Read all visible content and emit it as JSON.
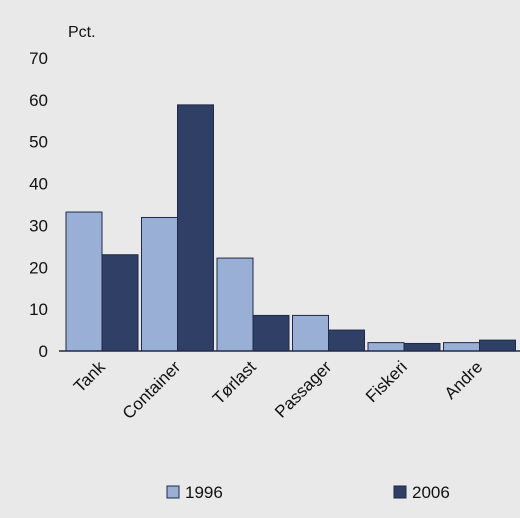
{
  "chart_data": {
    "type": "bar",
    "title": "",
    "xlabel": "",
    "ylabel": "Pct.",
    "ylim": [
      0,
      70
    ],
    "yticks": [
      0,
      10,
      20,
      30,
      40,
      50,
      60,
      70
    ],
    "grid": false,
    "legend_position": "bottom",
    "categories": [
      "Tank",
      "Container",
      "Tørlast",
      "Passager",
      "Fiskeri",
      "Andre"
    ],
    "series": [
      {
        "name": "1996",
        "color": "#9aafd6",
        "values": [
          33.2,
          31.9,
          22.2,
          8.5,
          2.0,
          2.0
        ]
      },
      {
        "name": "2006",
        "color": "#2f3f66",
        "values": [
          23.0,
          58.8,
          8.5,
          5.0,
          1.8,
          2.6
        ]
      }
    ]
  }
}
